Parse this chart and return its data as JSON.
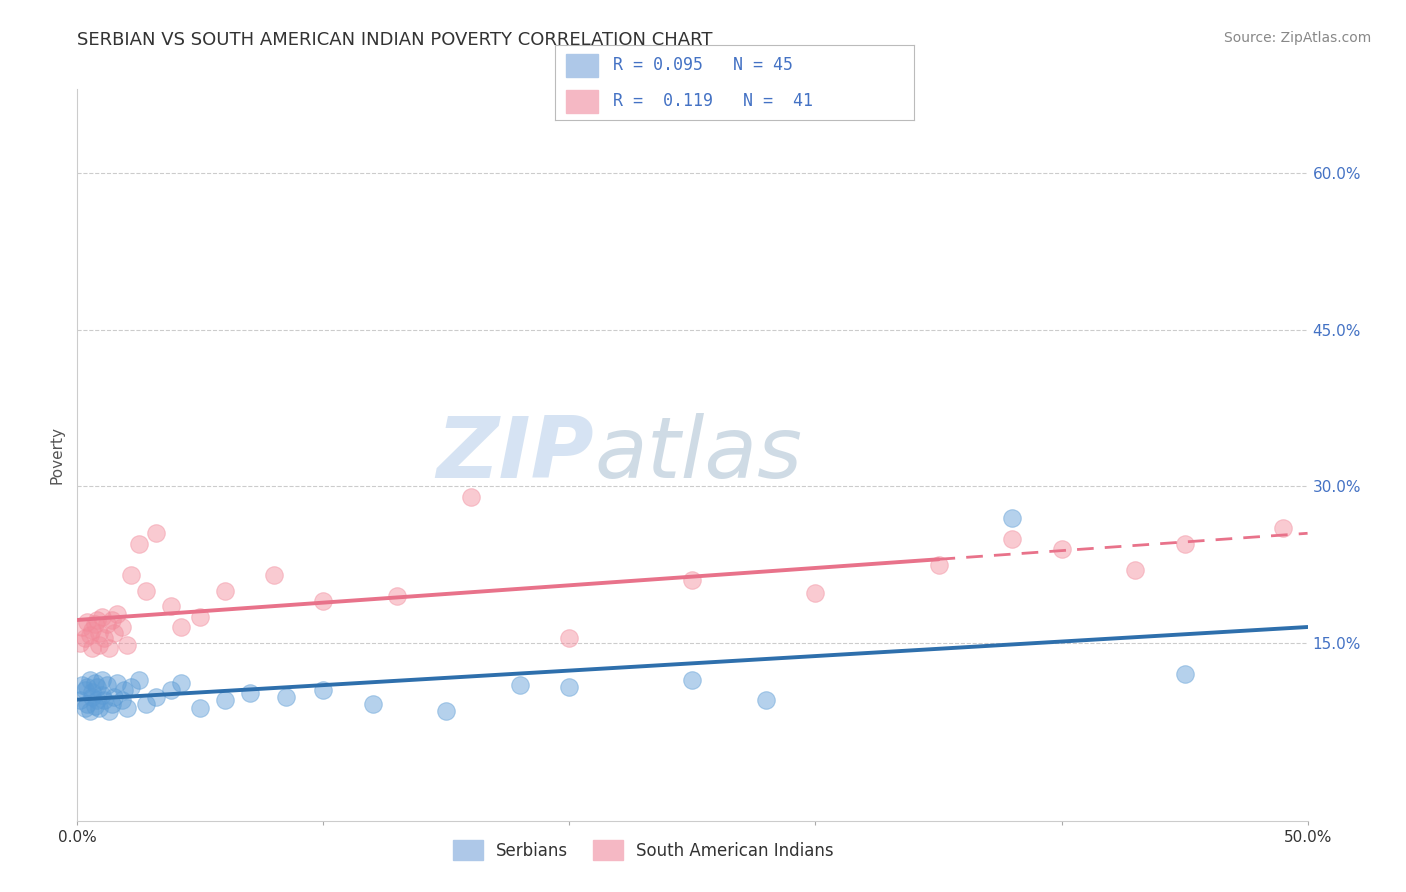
{
  "title": "SERBIAN VS SOUTH AMERICAN INDIAN POVERTY CORRELATION CHART",
  "source_text": "Source: ZipAtlas.com",
  "ylabel": "Poverty",
  "xlim": [
    0.0,
    0.5
  ],
  "ylim": [
    -0.02,
    0.68
  ],
  "ytick_values": [
    0.15,
    0.3,
    0.45,
    0.6
  ],
  "watermark_zip": "ZIP",
  "watermark_atlas": "atlas",
  "serbian_label": "Serbians",
  "sa_indian_label": "South American Indians",
  "serbian_color": "#5b9bd5",
  "sa_indian_color": "#f28b9b",
  "trend_serbian_color": "#2e6fac",
  "trend_sa_color": "#e8728a",
  "title_fontsize": 13,
  "axis_label_fontsize": 11,
  "tick_fontsize": 11,
  "serbian_x": [
    0.001,
    0.002,
    0.003,
    0.003,
    0.004,
    0.004,
    0.005,
    0.005,
    0.006,
    0.006,
    0.007,
    0.007,
    0.008,
    0.008,
    0.009,
    0.01,
    0.01,
    0.011,
    0.012,
    0.013,
    0.014,
    0.015,
    0.016,
    0.018,
    0.019,
    0.02,
    0.022,
    0.025,
    0.028,
    0.032,
    0.038,
    0.042,
    0.05,
    0.06,
    0.07,
    0.085,
    0.1,
    0.12,
    0.15,
    0.18,
    0.2,
    0.25,
    0.28,
    0.38,
    0.45
  ],
  "serbian_y": [
    0.095,
    0.11,
    0.088,
    0.105,
    0.092,
    0.108,
    0.085,
    0.115,
    0.098,
    0.103,
    0.09,
    0.112,
    0.095,
    0.108,
    0.088,
    0.1,
    0.115,
    0.095,
    0.11,
    0.085,
    0.092,
    0.098,
    0.112,
    0.095,
    0.105,
    0.088,
    0.108,
    0.115,
    0.092,
    0.098,
    0.105,
    0.112,
    0.088,
    0.095,
    0.102,
    0.098,
    0.105,
    0.092,
    0.085,
    0.11,
    0.108,
    0.115,
    0.095,
    0.27,
    0.12
  ],
  "sa_indian_x": [
    0.001,
    0.002,
    0.003,
    0.004,
    0.005,
    0.006,
    0.006,
    0.007,
    0.008,
    0.009,
    0.009,
    0.01,
    0.011,
    0.012,
    0.013,
    0.014,
    0.015,
    0.016,
    0.018,
    0.02,
    0.022,
    0.025,
    0.028,
    0.032,
    0.038,
    0.042,
    0.05,
    0.06,
    0.08,
    0.1,
    0.13,
    0.16,
    0.2,
    0.25,
    0.3,
    0.35,
    0.38,
    0.4,
    0.43,
    0.45,
    0.49
  ],
  "sa_indian_y": [
    0.15,
    0.165,
    0.155,
    0.17,
    0.158,
    0.162,
    0.145,
    0.168,
    0.172,
    0.148,
    0.16,
    0.175,
    0.155,
    0.168,
    0.145,
    0.172,
    0.16,
    0.178,
    0.165,
    0.148,
    0.215,
    0.245,
    0.2,
    0.255,
    0.185,
    0.165,
    0.175,
    0.2,
    0.215,
    0.19,
    0.195,
    0.29,
    0.155,
    0.21,
    0.198,
    0.225,
    0.25,
    0.24,
    0.22,
    0.245,
    0.26
  ],
  "trend_split_x": 0.35
}
